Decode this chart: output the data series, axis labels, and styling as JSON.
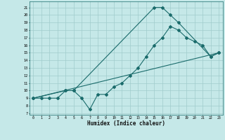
{
  "title": "",
  "xlabel": "Humidex (Indice chaleur)",
  "ylabel": "",
  "bg_color": "#c5e8e8",
  "grid_color": "#a0cccc",
  "line_color": "#1a6b6b",
  "xlim": [
    -0.5,
    23.5
  ],
  "ylim": [
    6.8,
    21.8
  ],
  "yticks": [
    7,
    8,
    9,
    10,
    11,
    12,
    13,
    14,
    15,
    16,
    17,
    18,
    19,
    20,
    21
  ],
  "xticks": [
    0,
    1,
    2,
    3,
    4,
    5,
    6,
    7,
    8,
    9,
    10,
    11,
    12,
    13,
    14,
    15,
    16,
    17,
    18,
    19,
    20,
    21,
    22,
    23
  ],
  "line1_x": [
    0,
    1,
    2,
    3,
    4,
    5,
    6,
    7,
    8,
    9,
    10,
    11,
    12,
    13,
    14,
    15,
    16,
    17,
    18,
    19,
    20,
    21,
    22,
    23
  ],
  "line1_y": [
    9,
    9,
    9,
    9,
    10,
    10,
    9,
    7.5,
    9.5,
    9.5,
    10.5,
    11,
    12,
    13,
    14.5,
    16,
    17,
    18.5,
    18,
    17,
    16.5,
    16,
    14.5,
    15
  ],
  "line2_x": [
    0,
    4,
    5,
    15,
    16,
    17,
    18,
    22,
    23
  ],
  "line2_y": [
    9,
    10,
    10,
    21,
    21,
    20,
    19,
    14.5,
    15
  ],
  "line3_x": [
    0,
    23
  ],
  "line3_y": [
    9,
    15
  ],
  "marker_style": "D",
  "marker_size": 2.0,
  "line_width": 0.8
}
